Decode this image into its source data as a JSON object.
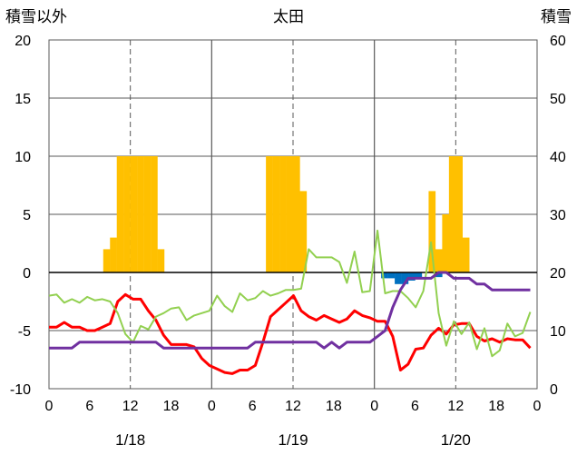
{
  "chart_data": {
    "type": "bar+line",
    "title": "太田",
    "left_axis_label": "積雪以外",
    "right_axis_label": "積雪",
    "left_ylim": [
      -10,
      20
    ],
    "left_yticks": [
      20,
      15,
      10,
      5,
      0,
      -5,
      -10
    ],
    "right_ylim": [
      0,
      60
    ],
    "right_yticks": [
      60,
      50,
      40,
      30,
      20,
      10,
      0
    ],
    "x_hours_range": [
      0,
      72
    ],
    "x_tick_labels": [
      "0",
      "6",
      "12",
      "18",
      "0",
      "6",
      "12",
      "18",
      "0",
      "6",
      "12",
      "18",
      "0"
    ],
    "date_labels": [
      {
        "label": "1/18",
        "center_hour": 12
      },
      {
        "label": "1/19",
        "center_hour": 36
      },
      {
        "label": "1/20",
        "center_hour": 60
      }
    ],
    "colors": {
      "precip_bar": "#FFC000",
      "snow_bar": "#0070C0",
      "red_line": "#FF0000",
      "green_line": "#92D050",
      "purple_line": "#7030A0",
      "axis": "#000000",
      "gridline": "#595959"
    },
    "precip_bars": [
      {
        "hour": 8,
        "value": 2
      },
      {
        "hour": 9,
        "value": 3
      },
      {
        "hour": 10,
        "value": 10
      },
      {
        "hour": 11,
        "value": 10
      },
      {
        "hour": 12,
        "value": 10
      },
      {
        "hour": 13,
        "value": 10
      },
      {
        "hour": 14,
        "value": 10
      },
      {
        "hour": 15,
        "value": 10
      },
      {
        "hour": 16,
        "value": 2
      },
      {
        "hour": 32,
        "value": 10
      },
      {
        "hour": 33,
        "value": 10
      },
      {
        "hour": 34,
        "value": 10
      },
      {
        "hour": 35,
        "value": 10
      },
      {
        "hour": 36,
        "value": 10
      },
      {
        "hour": 37,
        "value": 7
      },
      {
        "hour": 56,
        "value": 7
      },
      {
        "hour": 57,
        "value": 2
      },
      {
        "hour": 58,
        "value": 5
      },
      {
        "hour": 59,
        "value": 10
      },
      {
        "hour": 60,
        "value": 10
      },
      {
        "hour": 61,
        "value": 3
      }
    ],
    "snow_bars": [
      {
        "hour": 49,
        "value": -0.5
      },
      {
        "hour": 50,
        "value": -0.5
      },
      {
        "hour": 51,
        "value": -1.0
      },
      {
        "hour": 52,
        "value": -1.0
      },
      {
        "hour": 53,
        "value": -0.7
      },
      {
        "hour": 54,
        "value": -0.5
      },
      {
        "hour": 57,
        "value": -0.4
      }
    ],
    "series": [
      {
        "key": "red",
        "axis": "left",
        "values": [
          -4.7,
          -4.7,
          -4.3,
          -4.7,
          -4.7,
          -5,
          -5,
          -4.7,
          -4.4,
          -2.5,
          -1.9,
          -2.3,
          -2.3,
          -3.3,
          -4.1,
          -5.4,
          -6.2,
          -6.2,
          -6.2,
          -6.4,
          -7.4,
          -8.0,
          -8.3,
          -8.6,
          -8.7,
          -8.4,
          -8.4,
          -8.0,
          -6.0,
          -3.8,
          -3.2,
          -2.6,
          -2.0,
          -3.3,
          -3.8,
          -4.1,
          -3.7,
          -4.0,
          -4.3,
          -4.0,
          -3.3,
          -3.7,
          -3.9,
          -4.2,
          -4.2,
          -5.5,
          -8.4,
          -7.9,
          -6.6,
          -6.5,
          -5.4,
          -4.8,
          -5.3,
          -4.5,
          -4.4,
          -4.4,
          -5.5,
          -5.9,
          -5.7,
          -6.0,
          -5.7,
          -5.8,
          -5.8,
          -6.5
        ]
      },
      {
        "key": "green",
        "axis": "left",
        "values": [
          -2,
          -1.9,
          -2.6,
          -2.3,
          -2.6,
          -2.1,
          -2.4,
          -2.3,
          -2.5,
          -3.5,
          -5.3,
          -6.0,
          -4.6,
          -4.9,
          -3.8,
          -3.5,
          -3.1,
          -3.0,
          -4.1,
          -3.7,
          -3.5,
          -3.3,
          -2.0,
          -2.9,
          -3.4,
          -1.8,
          -2.4,
          -2.2,
          -1.6,
          -2.0,
          -1.8,
          -1.5,
          -1.5,
          -1.4,
          2.0,
          1.3,
          1.3,
          1.3,
          0.9,
          -0.9,
          1.8,
          -1.7,
          -1.6,
          3.6,
          -1.8,
          -1.6,
          -1.6,
          -2.2,
          -3.0,
          -1.6,
          2.6,
          -3.5,
          -6.3,
          -4.2,
          -5.3,
          -4.3,
          -6.6,
          -4.8,
          -7.2,
          -6.7,
          -4.4,
          -5.5,
          -5.2,
          -3.4
        ]
      },
      {
        "key": "purple",
        "axis": "left",
        "values": [
          -6.5,
          -6.5,
          -6.5,
          -6.5,
          -6.0,
          -6.0,
          -6.0,
          -6.0,
          -6.0,
          -6.0,
          -6.0,
          -6.0,
          -6.0,
          -6.0,
          -6.0,
          -6.5,
          -6.5,
          -6.5,
          -6.5,
          -6.5,
          -6.5,
          -6.5,
          -6.5,
          -6.5,
          -6.5,
          -6.5,
          -6.5,
          -6.0,
          -6.0,
          -6.0,
          -6.0,
          -6.0,
          -6.0,
          -6.0,
          -6.0,
          -6.0,
          -6.5,
          -6.0,
          -6.5,
          -6.0,
          -6.0,
          -6.0,
          -6.0,
          -5.5,
          -5.0,
          -3.0,
          -1.5,
          -0.5,
          -0.5,
          -0.5,
          -0.5,
          0.0,
          0.0,
          -0.5,
          -0.5,
          -0.5,
          -1.0,
          -1.0,
          -1.5,
          -1.5,
          -1.5,
          -1.5,
          -1.5,
          -1.5
        ],
        "start_hour": 0
      }
    ],
    "series_x_start_hour": 0,
    "series_x_end_hour": 71
  }
}
